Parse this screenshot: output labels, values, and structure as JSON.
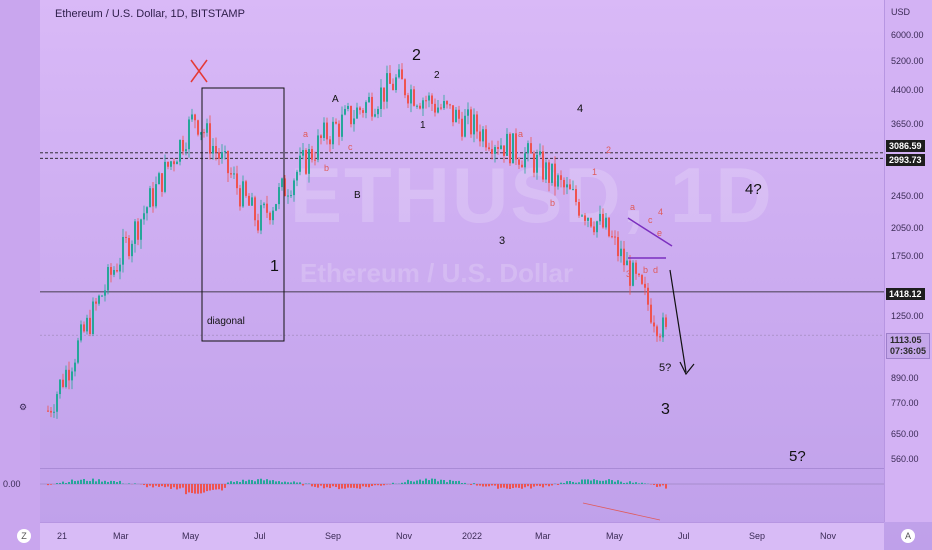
{
  "header": {
    "title": "Ethereum / U.S. Dollar, 1D, BITSTAMP"
  },
  "watermark": {
    "symbol": "ETHUSD, 1D",
    "name": "Ethereum / U.S. Dollar"
  },
  "axis": {
    "currency": "USD",
    "price_labels": [
      "6000.00",
      "5200.00",
      "4400.00",
      "3650.00",
      "2450.00",
      "2050.00",
      "1750.00",
      "1250.00",
      "890.00",
      "770.00",
      "650.00",
      "560.00"
    ],
    "time_labels": [
      "21",
      "Mar",
      "May",
      "Jul",
      "Sep",
      "Nov",
      "2022",
      "Mar",
      "May",
      "Jul",
      "Sep",
      "Nov"
    ],
    "oscillator_label": "0.00"
  },
  "price_tags": [
    {
      "label": "3086.59",
      "style": "dark"
    },
    {
      "label": "2993.73",
      "style": "dark"
    },
    {
      "label": "1418.12",
      "style": "dark"
    },
    {
      "label": "1113.05",
      "style": "dark"
    },
    {
      "label": "07:36:05",
      "style": "dark"
    }
  ],
  "buttons": {
    "left": "Z",
    "right": "A",
    "gear": "⚙"
  },
  "annotations": {
    "box_label": "diagonal",
    "wave_major": [
      "1",
      "2",
      "3",
      "4",
      "5?",
      "3",
      "4?",
      "5?"
    ],
    "wave_abc": [
      "A",
      "B",
      "1",
      "2"
    ],
    "wave_sub": [
      "a",
      "b",
      "c",
      "d",
      "e",
      "1",
      "2",
      "3",
      "4"
    ]
  },
  "colors": {
    "up": "#26a69a",
    "down": "#ef5350",
    "trend": "#7b2fbf",
    "cross": "#e53935"
  },
  "chart_data": {
    "type": "candlestick",
    "title": "Ethereum / U.S. Dollar, 1D, BITSTAMP",
    "x": [
      "2021-01",
      "2021-03",
      "2021-05",
      "2021-07",
      "2021-09",
      "2021-11",
      "2022-01",
      "2022-03",
      "2022-05",
      "2022-06"
    ],
    "close": [
      730,
      1600,
      3800,
      2100,
      3400,
      4600,
      3700,
      2950,
      2000,
      1113
    ],
    "high": [
      1450,
      1950,
      4350,
      2500,
      3950,
      4850,
      3900,
      3550,
      2950,
      1800
    ],
    "low": [
      720,
      1450,
      2500,
      1720,
      2800,
      3800,
      2350,
      2150,
      1700,
      1080
    ],
    "horizontal_levels": [
      3086.59,
      2993.73,
      1418.12,
      1113.05
    ],
    "y_scale": "log",
    "ylim": [
      520,
      6600
    ]
  }
}
